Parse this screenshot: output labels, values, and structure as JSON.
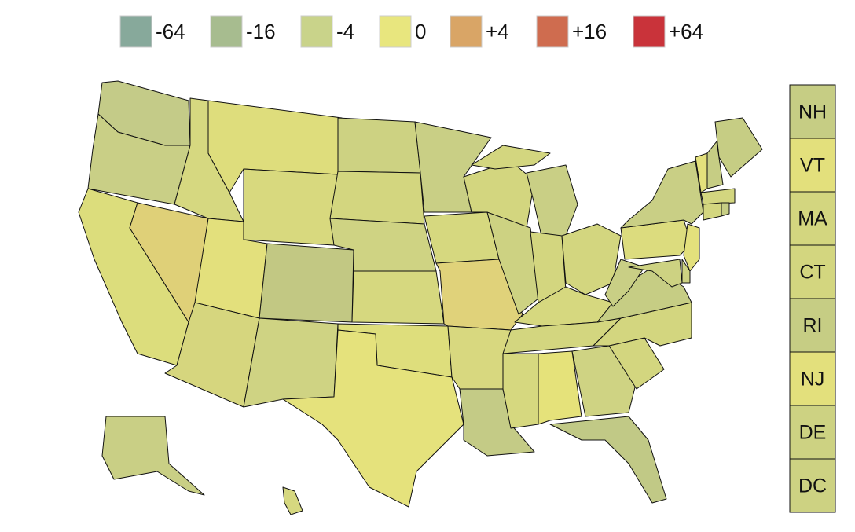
{
  "legend": [
    {
      "label": "-64",
      "color": "#87a99b"
    },
    {
      "label": "-16",
      "color": "#a7bc8f"
    },
    {
      "label": "-4",
      "color": "#c9d38a"
    },
    {
      "label": "0",
      "color": "#e8e67e"
    },
    {
      "label": "+4",
      "color": "#d9a566"
    },
    {
      "label": "+16",
      "color": "#cf6c4f"
    },
    {
      "label": "+64",
      "color": "#c9333a"
    }
  ],
  "side_states": [
    {
      "label": "NH",
      "color": "#c6cd84"
    },
    {
      "label": "VT",
      "color": "#e3e07c"
    },
    {
      "label": "MA",
      "color": "#d3d67f"
    },
    {
      "label": "CT",
      "color": "#d3d67f"
    },
    {
      "label": "RI",
      "color": "#c6cd84"
    },
    {
      "label": "NJ",
      "color": "#e3e07c"
    },
    {
      "label": "DE",
      "color": "#cdd282"
    },
    {
      "label": "DC",
      "color": "#cdd282"
    }
  ],
  "regions": [
    "#c4cb88",
    "#c9cf86",
    "#dcdd7c",
    "#dfd078",
    "#d6d880",
    "#dedd7c",
    "#d8d97e",
    "#e3e07c",
    "#c2c883",
    "#d6d67e",
    "#cfd383",
    "#cdd282",
    "#d3d67f",
    "#cfd383",
    "#d6d87f",
    "#dede7c",
    "#e5e27c",
    "#c9cf85",
    "#d6d87f",
    "#e0d27a",
    "#d8d87f",
    "#c4cb86",
    "#d3d67f",
    "#cdd282",
    "#c9cf85",
    "#d3d67f",
    "#d3d67f",
    "#d3d67f",
    "#d6d87f",
    "#d3d67f",
    "#e5e27a",
    "#d6d87f",
    "#c1c986",
    "#cfd383",
    "#d3d67f",
    "#d3d67f",
    "#c6cd84",
    "#c9cf85",
    "#dcdc7e",
    "#c9cf85",
    "#c6cd84",
    "#e3e07c",
    "#c6cd84",
    "#d3d67f",
    "#d3d67f",
    "#c6cd84",
    "#e3e07c",
    "#cdd282",
    "#cdd282",
    "#c9cf85",
    "#d6d880"
  ]
}
